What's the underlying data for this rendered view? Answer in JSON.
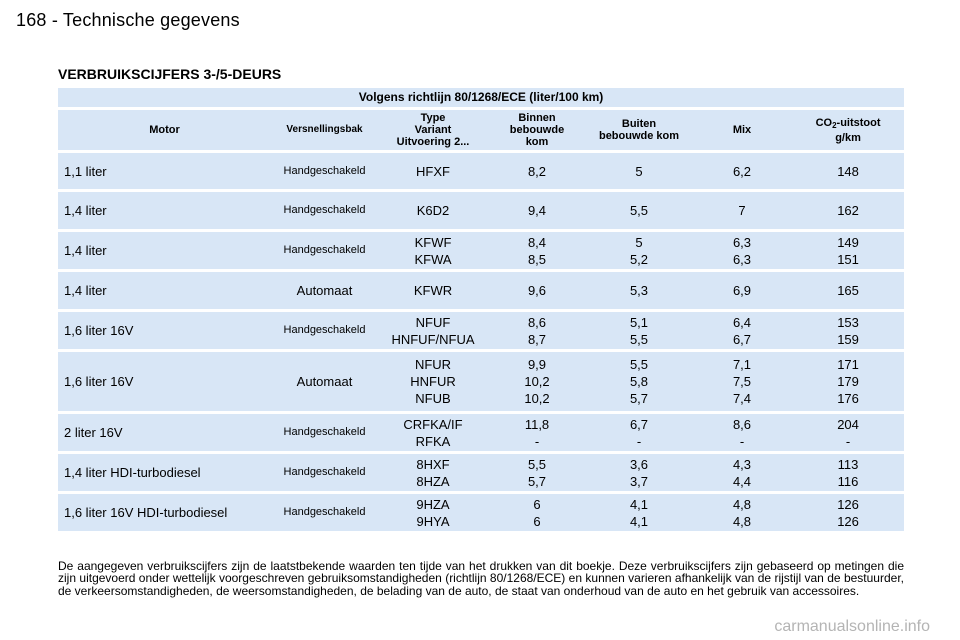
{
  "header": {
    "title": "168 - Technische gegevens"
  },
  "section": {
    "title": "VERBRUIKSCIJFERS 3-/5-DEURS"
  },
  "table": {
    "norm": "Volgens richtlijn 80/1268/ECE (liter/100 km)",
    "headers": {
      "motor": "Motor",
      "gearbox": "Versnellingsbak",
      "type": [
        "Type",
        "Variant",
        "Uitvoering 2..."
      ],
      "city": [
        "Binnen",
        "bebouwde",
        "kom"
      ],
      "highway": [
        "Buiten",
        "bebouwde kom"
      ],
      "mix": "Mix",
      "co2_pre": "CO",
      "co2_sub": "2",
      "co2_post": "-uitstoot",
      "co2_unit": "g/km"
    },
    "rows": [
      {
        "motor": "1,1 liter",
        "gearbox": "Handgeschakeld",
        "type": [
          "HFXF"
        ],
        "city": [
          "8,2"
        ],
        "highway": [
          "5"
        ],
        "mix": [
          "6,2"
        ],
        "co2": [
          "148"
        ]
      },
      {
        "motor": "1,4 liter",
        "gearbox": "Handgeschakeld",
        "type": [
          "K6D2"
        ],
        "city": [
          "9,4"
        ],
        "highway": [
          "5,5"
        ],
        "mix": [
          "7"
        ],
        "co2": [
          "162"
        ]
      },
      {
        "motor": "1,4 liter",
        "gearbox": "Handgeschakeld",
        "type": [
          "KFWF",
          "KFWA"
        ],
        "city": [
          "8,4",
          "8,5"
        ],
        "highway": [
          "5",
          "5,2"
        ],
        "mix": [
          "6,3",
          "6,3"
        ],
        "co2": [
          "149",
          "151"
        ]
      },
      {
        "motor": "1,4 liter",
        "gearbox": "Automaat",
        "type": [
          "KFWR"
        ],
        "city": [
          "9,6"
        ],
        "highway": [
          "5,3"
        ],
        "mix": [
          "6,9"
        ],
        "co2": [
          "165"
        ]
      },
      {
        "motor": "1,6 liter 16V",
        "gearbox": "Handgeschakeld",
        "type": [
          "NFUF",
          "HNFUF/NFUA"
        ],
        "city": [
          "8,6",
          "8,7"
        ],
        "highway": [
          "5,1",
          "5,5"
        ],
        "mix": [
          "6,4",
          "6,7"
        ],
        "co2": [
          "153",
          "159"
        ]
      },
      {
        "motor": "1,6 liter 16V",
        "gearbox": "Automaat",
        "type": [
          "NFUR",
          "HNFUR",
          "NFUB"
        ],
        "city": [
          "9,9",
          "10,2",
          "10,2"
        ],
        "highway": [
          "5,5",
          "5,8",
          "5,7"
        ],
        "mix": [
          "7,1",
          "7,5",
          "7,4"
        ],
        "co2": [
          "171",
          "179",
          "176"
        ]
      },
      {
        "motor": "2 liter 16V",
        "gearbox": "Handgeschakeld",
        "type": [
          "CRFKA/IF",
          "RFKA"
        ],
        "city": [
          "11,8",
          "-"
        ],
        "highway": [
          "6,7",
          "-"
        ],
        "mix": [
          "8,6",
          "-"
        ],
        "co2": [
          "204",
          "-"
        ]
      },
      {
        "motor": "1,4 liter HDI-turbodiesel",
        "gearbox": "Handgeschakeld",
        "type": [
          "8HXF",
          "8HZA"
        ],
        "city": [
          "5,5",
          "5,7"
        ],
        "highway": [
          "3,6",
          "3,7"
        ],
        "mix": [
          "4,3",
          "4,4"
        ],
        "co2": [
          "113",
          "116"
        ]
      },
      {
        "motor": "1,6 liter 16V HDI-turbodiesel",
        "gearbox": "Handgeschakeld",
        "type": [
          "9HZA",
          "9HYA"
        ],
        "city": [
          "6",
          "6"
        ],
        "highway": [
          "4,1",
          "4,1"
        ],
        "mix": [
          "4,8",
          "4,8"
        ],
        "co2": [
          "126",
          "126"
        ]
      }
    ]
  },
  "note": "De aangegeven verbruikscijfers zijn de laatstbekende waarden ten tijde van het drukken van dit boekje. Deze verbruikscijfers zijn gebaseerd op metingen die zijn uitgevoerd onder wettelijk voorgeschreven gebruiksomstandigheden (richtlijn 80/1268/ECE) en kunnen varieren afhankelijk van de rijstijl van de bestuurder, de verkeersomstandigheden, de weersomstandigheden, de belading van de auto, de staat van onderhoud van de auto en het gebruik van accessoires.",
  "watermark": "carmanualsonline.info"
}
